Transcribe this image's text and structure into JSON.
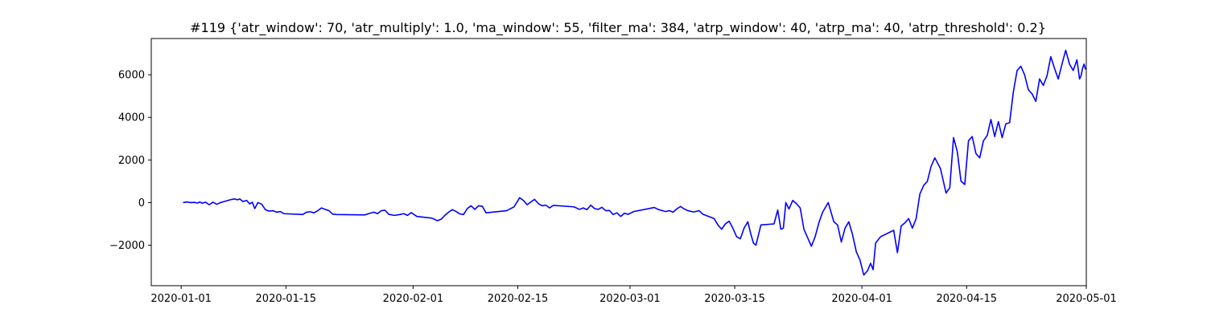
{
  "chart_data": {
    "type": "line",
    "title": "#119 {'atr_window': 70, 'atr_multiply': 1.0, 'ma_window': 55, 'filter_ma': 384, 'atrp_window': 40, 'atrp_ma': 40, 'atrp_threshold': 0.2}",
    "xlabel": "",
    "ylabel": "",
    "xlim": [
      "2019-12-28",
      "2020-05-01"
    ],
    "ylim": [
      -3900,
      7700
    ],
    "x_ticks": [
      "2020-01-01",
      "2020-01-15",
      "2020-02-01",
      "2020-02-15",
      "2020-03-01",
      "2020-03-15",
      "2020-04-01",
      "2020-04-15",
      "2020-05-01"
    ],
    "y_ticks": [
      -2000,
      0,
      2000,
      4000,
      6000
    ],
    "y_tick_labels": [
      "−2000",
      "0",
      "2000",
      "4000",
      "6000"
    ],
    "grid": false,
    "series": [
      {
        "color": "#0000ff",
        "points": [
          [
            "2020-01-01",
            0
          ],
          [
            "2020-01-01",
            30
          ],
          [
            "2020-01-02",
            0
          ],
          [
            "2020-01-02",
            10
          ],
          [
            "2020-01-03",
            -20
          ],
          [
            "2020-01-03",
            30
          ],
          [
            "2020-01-03",
            -30
          ],
          [
            "2020-01-04",
            20
          ],
          [
            "2020-01-04",
            -100
          ],
          [
            "2020-01-05",
            20
          ],
          [
            "2020-01-05",
            -80
          ],
          [
            "2020-01-06",
            0
          ],
          [
            "2020-01-06",
            50
          ],
          [
            "2020-01-07",
            100
          ],
          [
            "2020-01-07",
            150
          ],
          [
            "2020-01-08",
            170
          ],
          [
            "2020-01-08",
            130
          ],
          [
            "2020-01-08",
            170
          ],
          [
            "2020-01-09",
            50
          ],
          [
            "2020-01-09",
            100
          ],
          [
            "2020-01-10",
            -60
          ],
          [
            "2020-01-10",
            20
          ],
          [
            "2020-01-10",
            -280
          ],
          [
            "2020-01-11",
            0
          ],
          [
            "2020-01-11",
            -70
          ],
          [
            "2020-01-12",
            -330
          ],
          [
            "2020-01-12",
            -400
          ],
          [
            "2020-01-13",
            -380
          ],
          [
            "2020-01-13",
            -450
          ],
          [
            "2020-01-14",
            -420
          ],
          [
            "2020-01-14",
            -520
          ],
          [
            "2020-01-17",
            -560
          ],
          [
            "2020-01-17",
            -450
          ],
          [
            "2020-01-18",
            -430
          ],
          [
            "2020-01-18",
            -480
          ],
          [
            "2020-01-19",
            -380
          ],
          [
            "2020-01-19",
            -250
          ],
          [
            "2020-01-20",
            -320
          ],
          [
            "2020-01-20",
            -380
          ],
          [
            "2020-01-21",
            -540
          ],
          [
            "2020-01-21",
            -560
          ],
          [
            "2020-01-25",
            -580
          ],
          [
            "2020-01-26",
            -500
          ],
          [
            "2020-01-26",
            -450
          ],
          [
            "2020-01-27",
            -520
          ],
          [
            "2020-01-27",
            -380
          ],
          [
            "2020-01-28",
            -360
          ],
          [
            "2020-01-28",
            -550
          ],
          [
            "2020-01-29",
            -600
          ],
          [
            "2020-01-30",
            -560
          ],
          [
            "2020-01-30",
            -520
          ],
          [
            "2020-01-31",
            -600
          ],
          [
            "2020-01-31",
            -470
          ],
          [
            "2020-02-01",
            -650
          ],
          [
            "2020-02-03",
            -730
          ],
          [
            "2020-02-04",
            -850
          ],
          [
            "2020-02-04",
            -780
          ],
          [
            "2020-02-05",
            -600
          ],
          [
            "2020-02-05",
            -450
          ],
          [
            "2020-02-06",
            -330
          ],
          [
            "2020-02-06",
            -420
          ],
          [
            "2020-02-07",
            -530
          ],
          [
            "2020-02-07",
            -560
          ],
          [
            "2020-02-08",
            -280
          ],
          [
            "2020-02-08",
            -150
          ],
          [
            "2020-02-09",
            -320
          ],
          [
            "2020-02-09",
            -150
          ],
          [
            "2020-02-10",
            -170
          ],
          [
            "2020-02-10",
            -480
          ],
          [
            "2020-02-13",
            -380
          ],
          [
            "2020-02-14",
            -200
          ],
          [
            "2020-02-15",
            230
          ],
          [
            "2020-02-15",
            100
          ],
          [
            "2020-02-16",
            -100
          ],
          [
            "2020-02-16",
            30
          ],
          [
            "2020-02-17",
            150
          ],
          [
            "2020-02-17",
            -50
          ],
          [
            "2020-02-18",
            -150
          ],
          [
            "2020-02-18",
            -120
          ],
          [
            "2020-02-19",
            -250
          ],
          [
            "2020-02-19",
            -130
          ],
          [
            "2020-02-22",
            -200
          ],
          [
            "2020-02-23",
            -320
          ],
          [
            "2020-02-23",
            -250
          ],
          [
            "2020-02-24",
            -330
          ],
          [
            "2020-02-24",
            -120
          ],
          [
            "2020-02-25",
            -280
          ],
          [
            "2020-02-25",
            -320
          ],
          [
            "2020-02-26",
            -220
          ],
          [
            "2020-02-26",
            -380
          ],
          [
            "2020-02-27",
            -370
          ],
          [
            "2020-02-27",
            -560
          ],
          [
            "2020-02-28",
            -480
          ],
          [
            "2020-02-28",
            -650
          ],
          [
            "2020-02-29",
            -500
          ],
          [
            "2020-02-29",
            -550
          ],
          [
            "2020-03-01",
            -420
          ],
          [
            "2020-03-04",
            -230
          ],
          [
            "2020-03-04",
            -320
          ],
          [
            "2020-03-05",
            -370
          ],
          [
            "2020-03-05",
            -420
          ],
          [
            "2020-03-06",
            -380
          ],
          [
            "2020-03-06",
            -450
          ],
          [
            "2020-03-07",
            -300
          ],
          [
            "2020-03-07",
            -180
          ],
          [
            "2020-03-08",
            -300
          ],
          [
            "2020-03-08",
            -380
          ],
          [
            "2020-03-09",
            -440
          ],
          [
            "2020-03-10",
            -380
          ],
          [
            "2020-03-10",
            -550
          ],
          [
            "2020-03-12",
            -750
          ],
          [
            "2020-03-12",
            -1050
          ],
          [
            "2020-03-13",
            -1250
          ],
          [
            "2020-03-13",
            -1000
          ],
          [
            "2020-03-14",
            -870
          ],
          [
            "2020-03-14",
            -1200
          ],
          [
            "2020-03-15",
            -1600
          ],
          [
            "2020-03-15",
            -1700
          ],
          [
            "2020-03-16",
            -1200
          ],
          [
            "2020-03-16",
            -900
          ],
          [
            "2020-03-17",
            -1500
          ],
          [
            "2020-03-17",
            -1900
          ],
          [
            "2020-03-17",
            -2000
          ],
          [
            "2020-03-18",
            -1050
          ],
          [
            "2020-03-20",
            -1000
          ],
          [
            "2020-03-20",
            -350
          ],
          [
            "2020-03-21",
            -1250
          ],
          [
            "2020-03-21",
            -1200
          ],
          [
            "2020-03-21",
            0
          ],
          [
            "2020-03-22",
            -300
          ],
          [
            "2020-03-22",
            100
          ],
          [
            "2020-03-23",
            -50
          ],
          [
            "2020-03-23",
            -250
          ],
          [
            "2020-03-24",
            -1250
          ],
          [
            "2020-03-24",
            -1650
          ],
          [
            "2020-03-25",
            -2050
          ],
          [
            "2020-03-25",
            -1600
          ],
          [
            "2020-03-26",
            -950
          ],
          [
            "2020-03-26",
            -450
          ],
          [
            "2020-03-27",
            0
          ],
          [
            "2020-03-28",
            -900
          ],
          [
            "2020-03-28",
            -1050
          ],
          [
            "2020-03-29",
            -1850
          ],
          [
            "2020-03-29",
            -1200
          ],
          [
            "2020-03-30",
            -900
          ],
          [
            "2020-03-30",
            -1500
          ],
          [
            "2020-03-31",
            -2300
          ],
          [
            "2020-03-31",
            -2700
          ],
          [
            "2020-04-01",
            -3400
          ],
          [
            "2020-04-01",
            -3200
          ],
          [
            "2020-04-02",
            -2850
          ],
          [
            "2020-04-02",
            -3150
          ],
          [
            "2020-04-02",
            -1900
          ],
          [
            "2020-04-03",
            -1600
          ],
          [
            "2020-04-05",
            -1300
          ],
          [
            "2020-04-05",
            -2350
          ],
          [
            "2020-04-06",
            -1100
          ],
          [
            "2020-04-06",
            -950
          ],
          [
            "2020-04-07",
            -750
          ],
          [
            "2020-04-07",
            -1200
          ],
          [
            "2020-04-08",
            -750
          ],
          [
            "2020-04-08",
            400
          ],
          [
            "2020-04-09",
            800
          ],
          [
            "2020-04-09",
            1000
          ],
          [
            "2020-04-10",
            1700
          ],
          [
            "2020-04-10",
            2100
          ],
          [
            "2020-04-11",
            1600
          ],
          [
            "2020-04-12",
            450
          ],
          [
            "2020-04-12",
            700
          ],
          [
            "2020-04-13",
            3050
          ],
          [
            "2020-04-13",
            2400
          ],
          [
            "2020-04-14",
            1000
          ],
          [
            "2020-04-14",
            850
          ],
          [
            "2020-04-15",
            2900
          ],
          [
            "2020-04-15",
            3100
          ],
          [
            "2020-04-16",
            2300
          ],
          [
            "2020-04-16",
            2100
          ],
          [
            "2020-04-17",
            2900
          ],
          [
            "2020-04-17",
            3150
          ],
          [
            "2020-04-18",
            3900
          ],
          [
            "2020-04-18",
            3100
          ],
          [
            "2020-04-19",
            3800
          ],
          [
            "2020-04-19",
            3050
          ],
          [
            "2020-04-20",
            3700
          ],
          [
            "2020-04-20",
            3750
          ],
          [
            "2020-04-21",
            5200
          ],
          [
            "2020-04-21",
            6200
          ],
          [
            "2020-04-22",
            6400
          ],
          [
            "2020-04-22",
            6000
          ],
          [
            "2020-04-23",
            5300
          ],
          [
            "2020-04-23",
            5100
          ],
          [
            "2020-04-24",
            4750
          ],
          [
            "2020-04-24",
            5800
          ],
          [
            "2020-04-25",
            5500
          ],
          [
            "2020-04-25",
            5950
          ],
          [
            "2020-04-26",
            6850
          ],
          [
            "2020-04-26",
            6300
          ],
          [
            "2020-04-27",
            5800
          ],
          [
            "2020-04-27",
            6500
          ],
          [
            "2020-04-28",
            7150
          ],
          [
            "2020-04-28",
            6500
          ],
          [
            "2020-04-29",
            6200
          ],
          [
            "2020-04-29",
            6700
          ],
          [
            "2020-04-30",
            5800
          ],
          [
            "2020-04-30",
            5950
          ],
          [
            "2020-04-30",
            6300
          ],
          [
            "2020-04-30",
            6500
          ],
          [
            "2020-04-30",
            6250
          ]
        ]
      }
    ]
  }
}
